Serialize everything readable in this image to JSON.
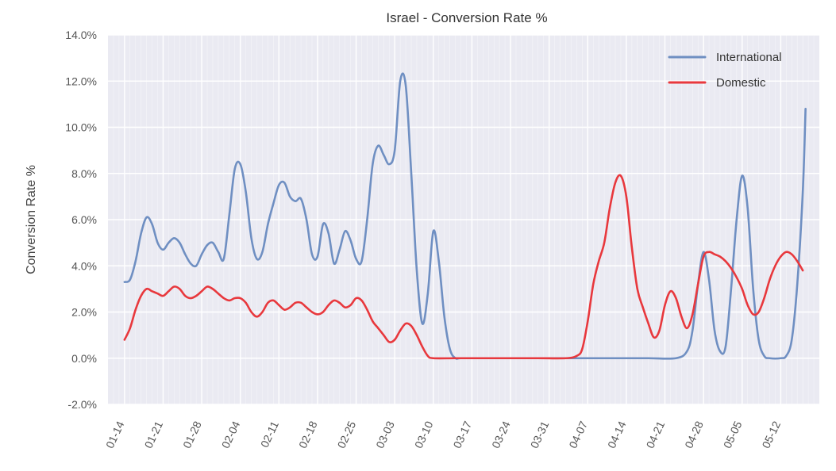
{
  "chart_data": {
    "type": "line",
    "title": "Israel - Conversion Rate %",
    "xlabel": "",
    "ylabel": "Conversion Rate %",
    "ylim": [
      -2.0,
      14.0
    ],
    "yticks": [
      -2.0,
      0.0,
      2.0,
      4.0,
      6.0,
      8.0,
      10.0,
      12.0,
      14.0
    ],
    "ytick_labels": [
      "-2.0%",
      "0.0%",
      "2.0%",
      "4.0%",
      "6.0%",
      "8.0%",
      "10.0%",
      "12.0%",
      "14.0%"
    ],
    "xtick_labels": [
      "01-14",
      "01-21",
      "01-28",
      "02-04",
      "02-11",
      "02-18",
      "02-25",
      "03-03",
      "03-10",
      "03-17",
      "03-24",
      "03-31",
      "04-07",
      "04-14",
      "04-21",
      "04-28",
      "05-05",
      "05-12"
    ],
    "x_range": [
      -3,
      126
    ],
    "grid": true,
    "legend_position": "top-right",
    "colors": {
      "International": "#6f8fc2",
      "Domestic": "#e8383d",
      "plot_background": "#eaeaf2",
      "grid": "#ffffff"
    },
    "series": [
      {
        "name": "International",
        "points": [
          [
            0,
            3.3
          ],
          [
            1,
            3.4
          ],
          [
            2,
            4.2
          ],
          [
            3,
            5.4
          ],
          [
            4,
            6.1
          ],
          [
            5,
            5.8
          ],
          [
            6,
            5.0
          ],
          [
            7,
            4.7
          ],
          [
            8,
            5.0
          ],
          [
            9,
            5.2
          ],
          [
            10,
            5.0
          ],
          [
            11,
            4.5
          ],
          [
            12,
            4.1
          ],
          [
            13,
            4.0
          ],
          [
            14,
            4.5
          ],
          [
            15,
            4.9
          ],
          [
            16,
            5.0
          ],
          [
            17,
            4.6
          ],
          [
            18,
            4.3
          ],
          [
            19,
            6.2
          ],
          [
            20,
            8.2
          ],
          [
            21,
            8.4
          ],
          [
            22,
            7.2
          ],
          [
            23,
            5.2
          ],
          [
            24,
            4.3
          ],
          [
            25,
            4.6
          ],
          [
            26,
            5.8
          ],
          [
            27,
            6.7
          ],
          [
            28,
            7.5
          ],
          [
            29,
            7.6
          ],
          [
            30,
            7.0
          ],
          [
            31,
            6.8
          ],
          [
            32,
            6.9
          ],
          [
            33,
            6.0
          ],
          [
            34,
            4.5
          ],
          [
            35,
            4.4
          ],
          [
            36,
            5.8
          ],
          [
            37,
            5.4
          ],
          [
            38,
            4.1
          ],
          [
            39,
            4.7
          ],
          [
            40,
            5.5
          ],
          [
            41,
            5.1
          ],
          [
            42,
            4.3
          ],
          [
            43,
            4.2
          ],
          [
            44,
            6.0
          ],
          [
            45,
            8.4
          ],
          [
            46,
            9.2
          ],
          [
            47,
            8.8
          ],
          [
            48,
            8.4
          ],
          [
            49,
            9.0
          ],
          [
            50,
            12.0
          ],
          [
            51,
            11.8
          ],
          [
            52,
            8.0
          ],
          [
            53,
            3.8
          ],
          [
            54,
            1.5
          ],
          [
            55,
            2.8
          ],
          [
            56,
            5.5
          ],
          [
            57,
            4.2
          ],
          [
            58,
            1.8
          ],
          [
            59,
            0.4
          ],
          [
            60,
            0.0
          ],
          [
            61,
            0.0
          ],
          [
            65,
            0.0
          ],
          [
            70,
            0.0
          ],
          [
            75,
            0.0
          ],
          [
            80,
            0.0
          ],
          [
            85,
            0.0
          ],
          [
            90,
            0.0
          ],
          [
            95,
            0.0
          ],
          [
            100,
            0.0
          ],
          [
            102,
            0.3
          ],
          [
            103,
            1.2
          ],
          [
            104,
            3.2
          ],
          [
            105,
            4.6
          ],
          [
            106,
            3.4
          ],
          [
            107,
            1.2
          ],
          [
            108,
            0.3
          ],
          [
            109,
            0.5
          ],
          [
            110,
            3.0
          ],
          [
            111,
            6.0
          ],
          [
            112,
            7.9
          ],
          [
            113,
            6.5
          ],
          [
            114,
            3.0
          ],
          [
            115,
            0.8
          ],
          [
            116,
            0.1
          ],
          [
            117,
            0.0
          ],
          [
            119,
            0.0
          ],
          [
            120,
            0.1
          ],
          [
            121,
            0.8
          ],
          [
            122,
            3.2
          ],
          [
            123,
            7.2
          ],
          [
            123.5,
            10.8
          ]
        ]
      },
      {
        "name": "Domestic",
        "points": [
          [
            0,
            0.8
          ],
          [
            1,
            1.3
          ],
          [
            2,
            2.1
          ],
          [
            3,
            2.7
          ],
          [
            4,
            3.0
          ],
          [
            5,
            2.9
          ],
          [
            6,
            2.8
          ],
          [
            7,
            2.7
          ],
          [
            8,
            2.9
          ],
          [
            9,
            3.1
          ],
          [
            10,
            3.0
          ],
          [
            11,
            2.7
          ],
          [
            12,
            2.6
          ],
          [
            13,
            2.7
          ],
          [
            14,
            2.9
          ],
          [
            15,
            3.1
          ],
          [
            16,
            3.0
          ],
          [
            17,
            2.8
          ],
          [
            18,
            2.6
          ],
          [
            19,
            2.5
          ],
          [
            20,
            2.6
          ],
          [
            21,
            2.6
          ],
          [
            22,
            2.4
          ],
          [
            23,
            2.0
          ],
          [
            24,
            1.8
          ],
          [
            25,
            2.0
          ],
          [
            26,
            2.4
          ],
          [
            27,
            2.5
          ],
          [
            28,
            2.3
          ],
          [
            29,
            2.1
          ],
          [
            30,
            2.2
          ],
          [
            31,
            2.4
          ],
          [
            32,
            2.4
          ],
          [
            33,
            2.2
          ],
          [
            34,
            2.0
          ],
          [
            35,
            1.9
          ],
          [
            36,
            2.0
          ],
          [
            37,
            2.3
          ],
          [
            38,
            2.5
          ],
          [
            39,
            2.4
          ],
          [
            40,
            2.2
          ],
          [
            41,
            2.3
          ],
          [
            42,
            2.6
          ],
          [
            43,
            2.5
          ],
          [
            44,
            2.1
          ],
          [
            45,
            1.6
          ],
          [
            46,
            1.3
          ],
          [
            47,
            1.0
          ],
          [
            48,
            0.7
          ],
          [
            49,
            0.8
          ],
          [
            50,
            1.2
          ],
          [
            51,
            1.5
          ],
          [
            52,
            1.4
          ],
          [
            53,
            1.0
          ],
          [
            54,
            0.5
          ],
          [
            55,
            0.1
          ],
          [
            56,
            0.0
          ],
          [
            60,
            0.0
          ],
          [
            65,
            0.0
          ],
          [
            70,
            0.0
          ],
          [
            75,
            0.0
          ],
          [
            80,
            0.0
          ],
          [
            82,
            0.1
          ],
          [
            83,
            0.4
          ],
          [
            84,
            1.6
          ],
          [
            85,
            3.2
          ],
          [
            86,
            4.2
          ],
          [
            87,
            5.0
          ],
          [
            88,
            6.5
          ],
          [
            89,
            7.6
          ],
          [
            90,
            7.9
          ],
          [
            91,
            7.0
          ],
          [
            92,
            4.8
          ],
          [
            93,
            3.0
          ],
          [
            94,
            2.2
          ],
          [
            95,
            1.5
          ],
          [
            96,
            0.9
          ],
          [
            97,
            1.2
          ],
          [
            98,
            2.3
          ],
          [
            99,
            2.9
          ],
          [
            100,
            2.6
          ],
          [
            101,
            1.8
          ],
          [
            102,
            1.3
          ],
          [
            103,
            1.9
          ],
          [
            104,
            3.2
          ],
          [
            105,
            4.4
          ],
          [
            106,
            4.6
          ],
          [
            107,
            4.5
          ],
          [
            108,
            4.4
          ],
          [
            109,
            4.2
          ],
          [
            110,
            3.9
          ],
          [
            111,
            3.5
          ],
          [
            112,
            3.0
          ],
          [
            113,
            2.3
          ],
          [
            114,
            1.9
          ],
          [
            115,
            2.0
          ],
          [
            116,
            2.6
          ],
          [
            117,
            3.4
          ],
          [
            118,
            4.0
          ],
          [
            119,
            4.4
          ],
          [
            120,
            4.6
          ],
          [
            121,
            4.5
          ],
          [
            122,
            4.2
          ],
          [
            123,
            3.8
          ]
        ]
      }
    ]
  }
}
